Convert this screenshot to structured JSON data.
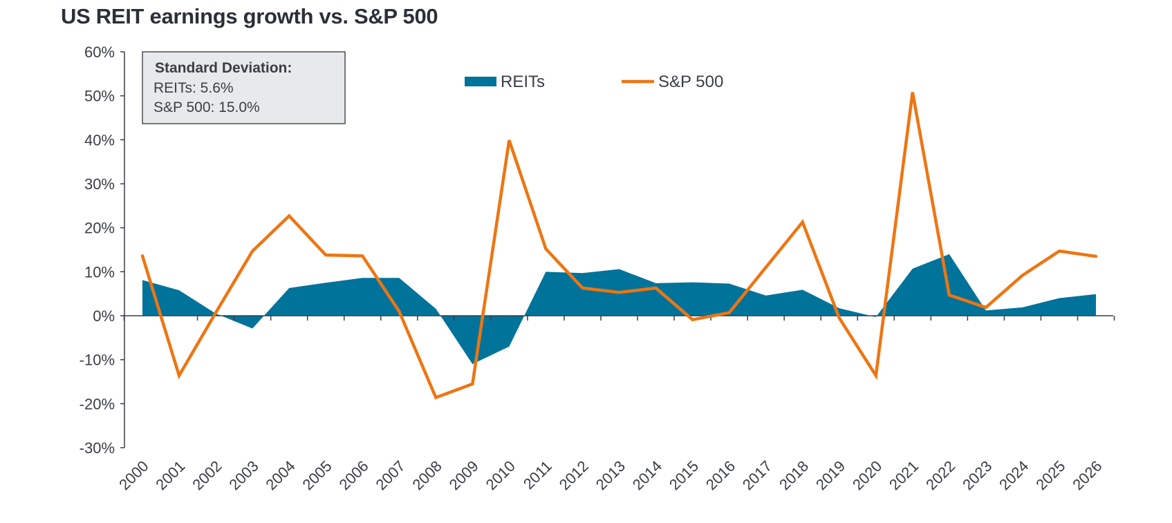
{
  "chart_data": {
    "type": "area+line",
    "title": "US REIT earnings growth vs. S&P 500",
    "xlabel": "",
    "ylabel": "",
    "ylim": [
      -30,
      60
    ],
    "yticks": [
      60,
      50,
      40,
      30,
      20,
      10,
      0,
      -10,
      -20,
      -30
    ],
    "ytick_format": "%",
    "grid": false,
    "legend_position": "top-center",
    "categories": [
      "2000",
      "2001",
      "2002",
      "2003",
      "2004",
      "2005",
      "2006",
      "2007",
      "2008",
      "2009",
      "2010",
      "2011",
      "2012",
      "2013",
      "2014",
      "2015",
      "2016",
      "2017",
      "2018",
      "2019",
      "2020",
      "2021",
      "2022",
      "2023",
      "2024",
      "2025",
      "2026"
    ],
    "series": [
      {
        "name": "REITs",
        "type": "area",
        "color": "#00739A",
        "values": [
          8.1,
          5.8,
          0.5,
          -2.9,
          6.3,
          7.5,
          8.6,
          8.6,
          1.6,
          -11.0,
          -7.0,
          10.0,
          9.7,
          10.6,
          7.4,
          7.6,
          7.3,
          4.6,
          5.9,
          1.7,
          -0.3,
          10.7,
          14.0,
          1.2,
          1.9,
          4.0,
          4.9
        ]
      },
      {
        "name": "S&P 500",
        "type": "line",
        "color": "#EE7512",
        "values": [
          13.6,
          -13.6,
          0.7,
          14.7,
          22.7,
          13.8,
          13.6,
          1.0,
          -18.6,
          -15.5,
          39.9,
          15.2,
          6.3,
          5.3,
          6.3,
          -0.9,
          0.7,
          11.0,
          21.3,
          -0.5,
          -13.6,
          50.8,
          4.7,
          1.9,
          9.2,
          14.7,
          13.5
        ]
      }
    ],
    "annotation": {
      "heading": "Standard Deviation:",
      "lines": [
        "REITs: 5.6%",
        "S&P 500: 15.0%"
      ]
    }
  }
}
